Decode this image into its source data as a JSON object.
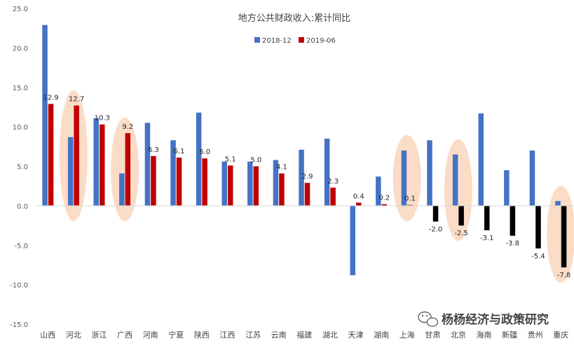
{
  "chart_data": {
    "type": "bar",
    "title": "地方公共财政收入:累计同比",
    "categories": [
      "山西",
      "河北",
      "浙江",
      "广西",
      "河南",
      "宁夏",
      "陕西",
      "江西",
      "江苏",
      "云南",
      "福建",
      "湖北",
      "天津",
      "湖南",
      "上海",
      "甘肃",
      "北京",
      "海南",
      "新疆",
      "贵州",
      "重庆"
    ],
    "series": [
      {
        "name": "2018-12",
        "color": "#4472C4",
        "values": [
          22.9,
          8.7,
          11.1,
          4.1,
          10.5,
          8.3,
          11.8,
          5.6,
          5.6,
          5.8,
          7.1,
          8.5,
          -8.8,
          3.7,
          7.0,
          8.3,
          6.5,
          11.7,
          4.5,
          7.0,
          0.6
        ]
      },
      {
        "name": "2019-06",
        "color": "#C00000",
        "neg_color": "#000000",
        "values": [
          12.9,
          12.7,
          10.3,
          9.2,
          6.3,
          6.1,
          6.0,
          5.1,
          5.0,
          4.1,
          2.9,
          2.3,
          0.4,
          0.2,
          0.1,
          -2.0,
          -2.5,
          -3.1,
          -3.8,
          -5.4,
          -7.8
        ],
        "labels": [
          "12.9",
          "12.7",
          "10.3",
          "9.2",
          "6.3",
          "6.1",
          "6.0",
          "5.1",
          "5.0",
          "4.1",
          "2.9",
          "2.3",
          "0.4",
          "0.2",
          "0.1",
          "-2.0",
          "-2.5",
          "-3.1",
          "-3.8",
          "-5.4",
          "-7.8"
        ]
      }
    ],
    "ylim": [
      -15.0,
      25.0
    ],
    "yticks": [
      "25.0",
      "20.0",
      "15.0",
      "10.0",
      "5.0",
      "0.0",
      "-5.0",
      "-10.0",
      "-15.0"
    ],
    "ytick_values": [
      25,
      20,
      15,
      10,
      5,
      0,
      -5,
      -10,
      -15
    ],
    "legend_position": "top-center",
    "grid": false,
    "highlights": [
      "河北",
      "广西",
      "上海",
      "北京",
      "重庆"
    ],
    "highlight_color": "#F4B183"
  },
  "watermark": {
    "icon": "wechat-icon",
    "text": "杨杨经济与政策研究"
  }
}
